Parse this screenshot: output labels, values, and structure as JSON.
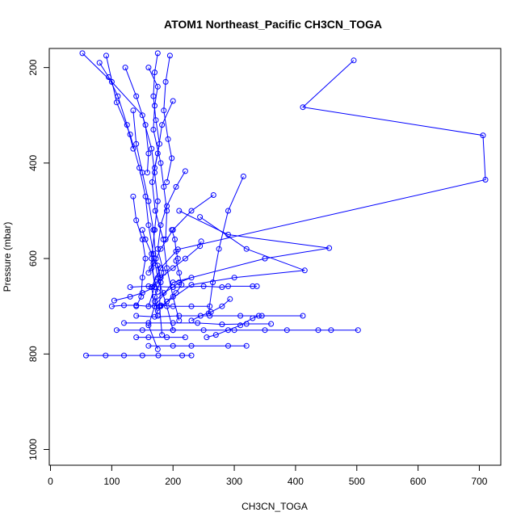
{
  "chart_data": {
    "type": "scatter",
    "title": "ATOM1 Northeast_Pacific CH3CN_TOGA",
    "xlabel": "CH3CN_TOGA",
    "ylabel": "Pressure (mbar)",
    "xlim": [
      -2,
      735
    ],
    "ylim": [
      1033,
      160
    ],
    "y_reversed": true,
    "x_ticks": [
      0,
      100,
      200,
      300,
      400,
      500,
      600,
      700
    ],
    "y_ticks": [
      200,
      400,
      600,
      800,
      1000
    ],
    "grid": false,
    "legend": "none",
    "colors": {
      "series": "#0000ff",
      "axis": "#000000"
    },
    "series": [
      {
        "mode": "lines+markers",
        "points": [
          [
            495,
            185
          ],
          [
            412,
            283
          ],
          [
            706,
            342
          ],
          [
            710,
            435
          ],
          [
            208,
            581
          ],
          [
            180,
            620
          ],
          [
            165,
            660
          ],
          [
            170,
            700
          ],
          [
            160,
            740
          ],
          [
            175,
            790
          ]
        ]
      },
      {
        "mode": "lines+markers",
        "points": [
          [
            52,
            170
          ],
          [
            100,
            230
          ],
          [
            150,
            300
          ],
          [
            165,
            370
          ],
          [
            170,
            420
          ],
          [
            175,
            480
          ],
          [
            170,
            540
          ],
          [
            165,
            600
          ],
          [
            170,
            660
          ],
          [
            160,
            700
          ]
        ]
      },
      {
        "mode": "lines+markers",
        "points": [
          [
            91,
            175
          ],
          [
            108,
            273
          ],
          [
            130,
            340
          ],
          [
            145,
            410
          ],
          [
            155,
            470
          ],
          [
            160,
            530
          ],
          [
            168,
            590
          ],
          [
            175,
            640
          ],
          [
            190,
            700
          ],
          [
            200,
            750
          ]
        ]
      },
      {
        "mode": "lines+markers",
        "points": [
          [
            200,
            270
          ],
          [
            182,
            320
          ],
          [
            175,
            380
          ],
          [
            166,
            440
          ],
          [
            171,
            500
          ],
          [
            184,
            560
          ],
          [
            190,
            620
          ],
          [
            200,
            680
          ],
          [
            210,
            730
          ]
        ]
      },
      {
        "mode": "lines+markers",
        "points": [
          [
            135,
            290
          ],
          [
            140,
            360
          ],
          [
            150,
            420
          ],
          [
            160,
            480
          ],
          [
            168,
            540
          ],
          [
            172,
            600
          ],
          [
            180,
            650
          ],
          [
            178,
            700
          ],
          [
            182,
            760
          ]
        ]
      },
      {
        "mode": "lines+markers",
        "points": [
          [
            220,
            417
          ],
          [
            205,
            450
          ],
          [
            190,
            490
          ],
          [
            180,
            530
          ],
          [
            175,
            580
          ],
          [
            185,
            630
          ],
          [
            170,
            680
          ],
          [
            175,
            720
          ]
        ]
      },
      {
        "mode": "lines+markers",
        "points": [
          [
            266,
            467
          ],
          [
            230,
            500
          ],
          [
            200,
            540
          ],
          [
            180,
            580
          ],
          [
            165,
            620
          ],
          [
            175,
            670
          ]
        ]
      },
      {
        "mode": "lines+markers",
        "points": [
          [
            315,
            428
          ],
          [
            290,
            500
          ],
          [
            275,
            580
          ],
          [
            265,
            650
          ],
          [
            258,
            715
          ]
        ]
      },
      {
        "mode": "lines+markers",
        "points": [
          [
            210,
            500
          ],
          [
            290,
            550
          ],
          [
            455,
            578
          ],
          [
            350,
            600
          ],
          [
            200,
            650
          ],
          [
            170,
            700
          ]
        ]
      },
      {
        "mode": "lines+markers",
        "points": [
          [
            244,
            513
          ],
          [
            320,
            580
          ],
          [
            415,
            625
          ],
          [
            300,
            640
          ],
          [
            230,
            655
          ],
          [
            180,
            700
          ]
        ]
      },
      {
        "mode": "lines+markers",
        "points": [
          [
            246,
            564
          ],
          [
            244,
            574
          ],
          [
            220,
            600
          ],
          [
            200,
            620
          ],
          [
            180,
            640
          ],
          [
            165,
            660
          ]
        ]
      },
      {
        "mode": "lines+markers",
        "points": [
          [
            135,
            470
          ],
          [
            140,
            520
          ],
          [
            150,
            560
          ],
          [
            155,
            600
          ],
          [
            150,
            640
          ],
          [
            148,
            680
          ],
          [
            140,
            700
          ]
        ]
      },
      {
        "mode": "lines+markers",
        "points": [
          [
            160,
            200
          ],
          [
            175,
            240
          ],
          [
            170,
            280
          ],
          [
            168,
            330
          ],
          [
            180,
            400
          ],
          [
            185,
            450
          ],
          [
            190,
            500
          ],
          [
            188,
            560
          ]
        ]
      },
      {
        "mode": "lines+markers",
        "points": [
          [
            195,
            175
          ],
          [
            188,
            230
          ],
          [
            185,
            290
          ],
          [
            192,
            350
          ],
          [
            198,
            390
          ],
          [
            190,
            440
          ]
        ]
      },
      {
        "mode": "lines+markers",
        "points": [
          [
            175,
            170
          ],
          [
            170,
            210
          ],
          [
            168,
            260
          ],
          [
            172,
            310
          ],
          [
            178,
            360
          ],
          [
            170,
            410
          ]
        ]
      },
      {
        "mode": "lines+markers",
        "points": [
          [
            122,
            200
          ],
          [
            140,
            260
          ],
          [
            155,
            320
          ],
          [
            160,
            380
          ],
          [
            158,
            420
          ]
        ]
      },
      {
        "mode": "lines+markers",
        "points": [
          [
            80,
            190
          ],
          [
            95,
            220
          ],
          [
            110,
            260
          ],
          [
            125,
            320
          ],
          [
            135,
            370
          ]
        ]
      },
      {
        "mode": "lines+markers",
        "points": [
          [
            130,
            660
          ],
          [
            160,
            658
          ],
          [
            200,
            660
          ],
          [
            250,
            658
          ],
          [
            280,
            660
          ],
          [
            290,
            658
          ],
          [
            330,
            658
          ],
          [
            337,
            658
          ]
        ]
      },
      {
        "mode": "lines+markers",
        "points": [
          [
            100,
            700
          ],
          [
            120,
            698
          ],
          [
            140,
            698
          ],
          [
            160,
            700
          ],
          [
            180,
            698
          ],
          [
            200,
            700
          ],
          [
            230,
            700
          ],
          [
            260,
            700
          ]
        ]
      },
      {
        "mode": "lines+markers",
        "points": [
          [
            140,
            720
          ],
          [
            170,
            722
          ],
          [
            210,
            720
          ],
          [
            260,
            720
          ],
          [
            310,
            720
          ],
          [
            345,
            720
          ],
          [
            412,
            720
          ]
        ]
      },
      {
        "mode": "lines+markers",
        "points": [
          [
            120,
            735
          ],
          [
            160,
            735
          ],
          [
            200,
            735
          ],
          [
            240,
            735
          ],
          [
            280,
            738
          ],
          [
            320,
            737
          ],
          [
            360,
            737
          ]
        ]
      },
      {
        "mode": "lines+markers",
        "points": [
          [
            108,
            750
          ],
          [
            150,
            750
          ],
          [
            200,
            750
          ],
          [
            250,
            750
          ],
          [
            300,
            750
          ],
          [
            350,
            750
          ],
          [
            386,
            750
          ],
          [
            437,
            750
          ],
          [
            458,
            750
          ],
          [
            502,
            750
          ]
        ]
      },
      {
        "mode": "lines+markers",
        "points": [
          [
            140,
            765
          ],
          [
            160,
            765
          ],
          [
            190,
            765
          ],
          [
            220,
            765
          ]
        ]
      },
      {
        "mode": "lines+markers",
        "points": [
          [
            160,
            783
          ],
          [
            200,
            783
          ],
          [
            230,
            783
          ],
          [
            290,
            783
          ],
          [
            320,
            783
          ]
        ]
      },
      {
        "mode": "lines+markers",
        "points": [
          [
            58,
            803
          ],
          [
            90,
            803
          ],
          [
            120,
            803
          ],
          [
            150,
            803
          ],
          [
            176,
            803
          ],
          [
            215,
            803
          ],
          [
            230,
            803
          ]
        ]
      },
      {
        "mode": "lines+markers",
        "points": [
          [
            104,
            688
          ],
          [
            130,
            680
          ],
          [
            150,
            672
          ],
          [
            170,
            660
          ],
          [
            180,
            640
          ],
          [
            175,
            615
          ]
        ]
      },
      {
        "mode": "lines+markers",
        "points": [
          [
            205,
            605
          ],
          [
            210,
            630
          ],
          [
            214,
            655
          ],
          [
            205,
            672
          ],
          [
            190,
            690
          ],
          [
            175,
            710
          ]
        ]
      },
      {
        "mode": "lines+markers",
        "points": [
          [
            230,
            640
          ],
          [
            210,
            650
          ],
          [
            200,
            660
          ],
          [
            185,
            672
          ],
          [
            170,
            690
          ]
        ]
      },
      {
        "mode": "lines+markers",
        "points": [
          [
            340,
            720
          ],
          [
            330,
            725
          ],
          [
            310,
            740
          ],
          [
            290,
            750
          ],
          [
            270,
            760
          ],
          [
            255,
            765
          ]
        ]
      },
      {
        "mode": "lines+markers",
        "points": [
          [
            150,
            540
          ],
          [
            155,
            560
          ],
          [
            165,
            590
          ],
          [
            168,
            610
          ],
          [
            160,
            630
          ]
        ]
      },
      {
        "mode": "lines+markers",
        "points": [
          [
            198,
            540
          ],
          [
            203,
            560
          ],
          [
            205,
            585
          ],
          [
            208,
            600
          ]
        ]
      },
      {
        "mode": "lines+markers",
        "points": [
          [
            293,
            685
          ],
          [
            280,
            700
          ],
          [
            262,
            712
          ],
          [
            245,
            720
          ],
          [
            230,
            730
          ]
        ]
      }
    ]
  }
}
